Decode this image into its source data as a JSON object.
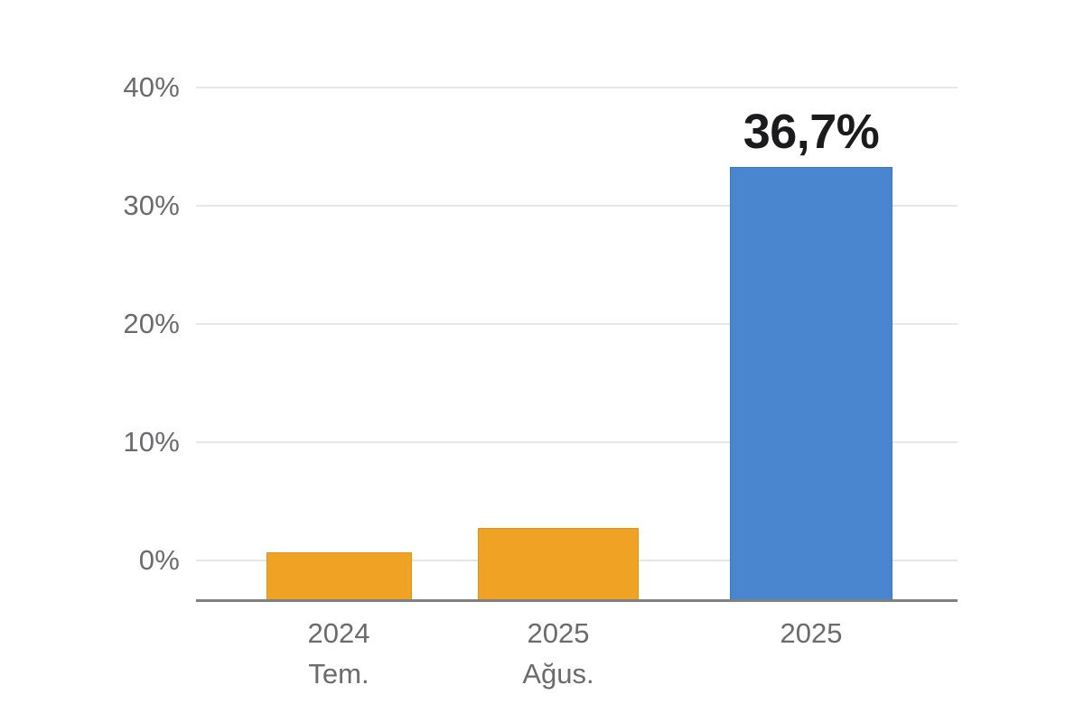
{
  "chart_data": {
    "type": "bar",
    "title": "",
    "categories": [
      "2024 Tem.",
      "2025 Ağus.",
      "2025"
    ],
    "category_lines": [
      [
        "2024",
        "Tem."
      ],
      [
        "2025",
        "Ağus."
      ],
      [
        "2025"
      ]
    ],
    "series": [
      {
        "name": "share-percent",
        "values": [
          4.1,
          6.2,
          36.7
        ],
        "colors": [
          "#F0A225",
          "#F0A225",
          "#4A85D0"
        ],
        "border_colors": [
          "#DE9413",
          "#DE9413",
          "#3C77C2"
        ]
      }
    ],
    "value_labels": [
      "",
      "",
      "36,7%"
    ],
    "yticks": [
      {
        "value": 40,
        "label": "40%"
      },
      {
        "value": 30,
        "label": "30%"
      },
      {
        "value": 20,
        "label": "20%"
      },
      {
        "value": 10,
        "label": "10%"
      },
      {
        "value": 0,
        "label": "0%"
      }
    ],
    "ylim": [
      -3.45,
      43.5
    ],
    "xlabel": "",
    "ylabel": "",
    "grid": true,
    "legend": false,
    "colors": {
      "background": "#FFFFFF",
      "gridline": "#E7E7E7",
      "axis_line": "#7F8082",
      "tick_label": "#6A6A6F",
      "value_label": "#1B1B1D"
    }
  }
}
